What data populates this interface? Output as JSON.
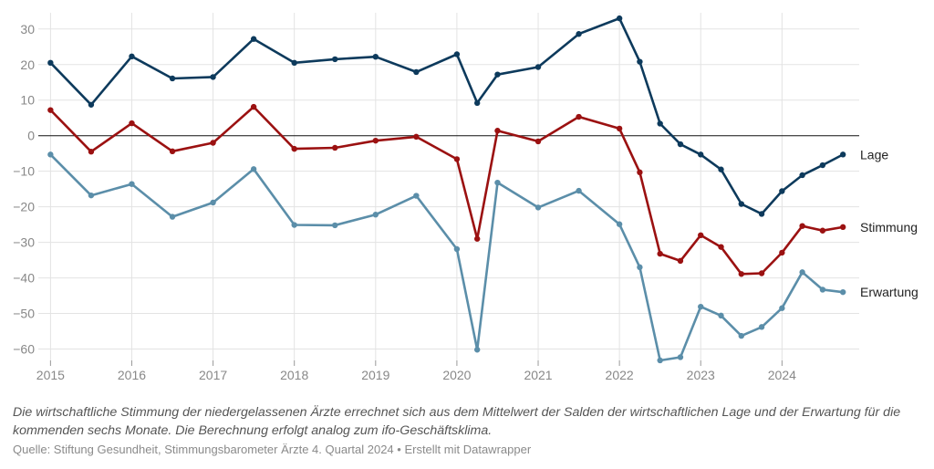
{
  "chart_data": {
    "type": "line",
    "x": [
      2015.0,
      2015.5,
      2016.0,
      2016.5,
      2017.0,
      2017.5,
      2018.0,
      2018.5,
      2019.0,
      2019.5,
      2020.0,
      2020.25,
      2020.5,
      2021.0,
      2021.5,
      2022.0,
      2022.25,
      2022.5,
      2022.75,
      2023.0,
      2023.25,
      2023.5,
      2023.75,
      2024.0,
      2024.25,
      2024.5,
      2024.75
    ],
    "x_ticks": [
      "2015",
      "2016",
      "2017",
      "2018",
      "2019",
      "2020",
      "2021",
      "2022",
      "2023",
      "2024"
    ],
    "y_ticks": [
      "30",
      "20",
      "10",
      "0",
      "−10",
      "−20",
      "−30",
      "−40",
      "−50",
      "−60"
    ],
    "ylim": [
      -65,
      32
    ],
    "xlim": [
      2014.85,
      2024.95
    ],
    "grid": true,
    "series": [
      {
        "name": "Lage",
        "color": "#0d3a5c",
        "values": [
          20.5,
          8.7,
          22.3,
          16.1,
          16.5,
          27.2,
          20.5,
          21.5,
          22.2,
          17.9,
          22.9,
          9.2,
          17.2,
          19.3,
          28.6,
          33.0,
          20.8,
          3.4,
          -2.4,
          -5.3,
          -9.5,
          -19.2,
          -22.0,
          -15.6,
          -11.1,
          -8.3,
          -5.3
        ]
      },
      {
        "name": "Stimmung",
        "color": "#9b1111",
        "values": [
          7.2,
          -4.5,
          3.5,
          -4.4,
          -2.0,
          8.1,
          -3.7,
          -3.4,
          -1.4,
          -0.3,
          -6.6,
          -29.0,
          1.4,
          -1.6,
          5.3,
          2.0,
          -10.3,
          -33.2,
          -35.2,
          -28.0,
          -31.3,
          -38.9,
          -38.7,
          -32.9,
          -25.4,
          -26.7,
          -25.7
        ]
      },
      {
        "name": "Erwartung",
        "color": "#5b8ea9",
        "values": [
          -5.3,
          -16.8,
          -13.6,
          -22.8,
          -18.8,
          -9.4,
          -25.1,
          -25.2,
          -22.2,
          -16.9,
          -31.9,
          -60.2,
          -13.2,
          -20.2,
          -15.5,
          -24.9,
          -37.0,
          -63.2,
          -62.3,
          -48.1,
          -50.6,
          -56.3,
          -53.8,
          -48.5,
          -38.4,
          -43.3,
          -44.0
        ]
      }
    ]
  },
  "footnote": "Die wirtschaftliche Stimmung der niedergelassenen Ärzte errechnet sich aus dem Mittelwert der Salden der wirtschaftlichen Lage und der Erwartung für die kommenden sechs Monate. Die Berechnung erfolgt analog zum ifo-Geschäftsklima.",
  "source": "Quelle: Stiftung Gesundheit, Stimmungsbarometer Ärzte 4. Quartal 2024 • Erstellt mit Datawrapper"
}
